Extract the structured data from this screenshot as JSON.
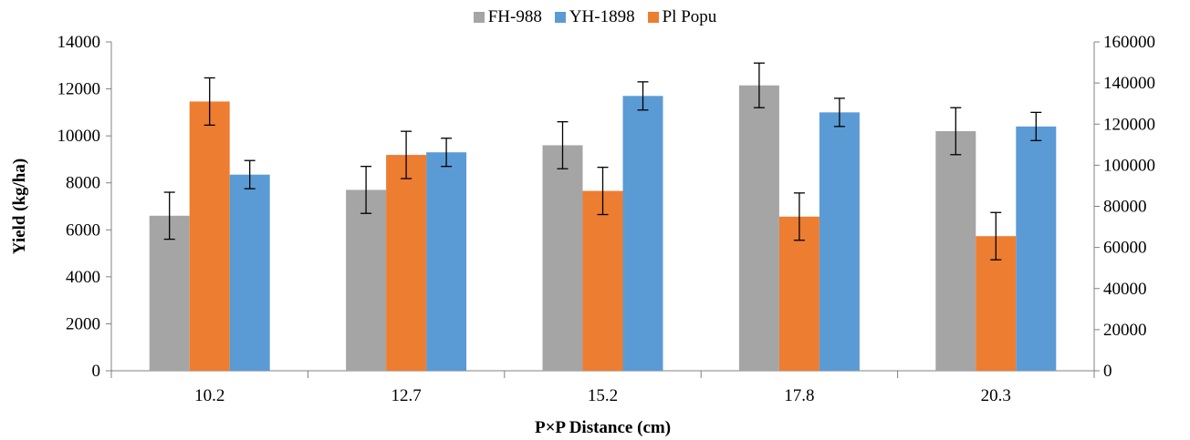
{
  "chart_data": {
    "type": "bar",
    "xlabel": "P×P Distance (cm)",
    "ylabel": "Yield (kg/ha)",
    "categories": [
      "10.2",
      "12.7",
      "15.2",
      "17.8",
      "20.3"
    ],
    "ylim": [
      0,
      14000
    ],
    "y_ticks": [
      "0",
      "2000",
      "4000",
      "6000",
      "8000",
      "10000",
      "12000",
      "14000"
    ],
    "y2lim": [
      0,
      160000
    ],
    "y2_ticks": [
      "0",
      "20000",
      "40000",
      "60000",
      "80000",
      "100000",
      "120000",
      "140000",
      "160000"
    ],
    "legend_position": "top-center",
    "series": [
      {
        "name": "FH-988",
        "color": "#a5a5a5",
        "axis": "left",
        "values": [
          6600,
          7700,
          9600,
          12150,
          10200
        ],
        "errors": [
          1000,
          1000,
          1000,
          950,
          1000
        ]
      },
      {
        "name": "YH-1898",
        "color": "#5b9bd5",
        "axis": "left",
        "values": [
          8350,
          9300,
          11700,
          11000,
          10400
        ],
        "errors": [
          600,
          600,
          600,
          600,
          600
        ]
      },
      {
        "name": "Pl Popu",
        "color": "#ed7d31",
        "axis": "right",
        "values": [
          131000,
          105000,
          87500,
          75000,
          65500
        ],
        "errors": [
          11500,
          11500,
          11500,
          11500,
          11500
        ]
      }
    ]
  }
}
